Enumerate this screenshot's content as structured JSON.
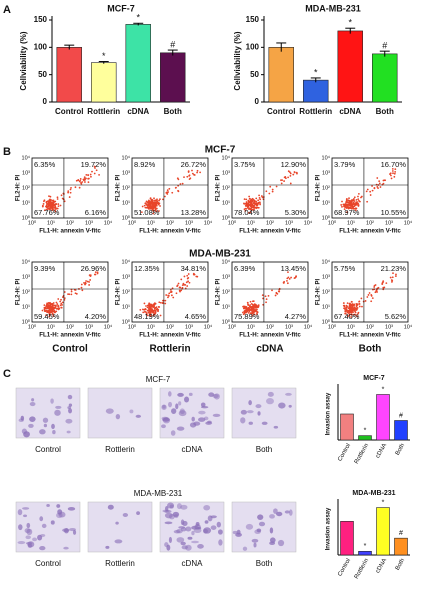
{
  "panels": [
    "A",
    "B",
    "C"
  ],
  "chart_data": [
    {
      "type": "bar",
      "title": "MCF-7",
      "y_label": "Cellviability (%)",
      "categories": [
        "Control",
        "Rottlerin",
        "cDNA",
        "Both"
      ],
      "values": [
        100,
        72,
        142,
        90
      ],
      "errors": [
        4,
        2,
        2,
        5
      ],
      "colors": [
        "#f24a4a",
        "#ffff9c",
        "#3de3a6",
        "#5c0f4f"
      ],
      "annotations": [
        null,
        "*",
        "*",
        "#"
      ],
      "ylim": [
        0,
        150
      ],
      "yticks": [
        0,
        50,
        100,
        150
      ]
    },
    {
      "type": "bar",
      "title": "MDA-MB-231",
      "y_label": "Cellviability (%)",
      "categories": [
        "Control",
        "Rottlerin",
        "cDNA",
        "Both"
      ],
      "values": [
        100,
        40,
        130,
        88
      ],
      "errors": [
        8,
        4,
        5,
        5
      ],
      "colors": [
        "#f5a445",
        "#2f62e0",
        "#ff1414",
        "#22e022"
      ],
      "annotations": [
        null,
        "*",
        "*",
        "#"
      ],
      "ylim": [
        0,
        150
      ],
      "yticks": [
        0,
        50,
        100,
        150
      ]
    },
    {
      "type": "bar",
      "title": "MCF-7",
      "y_label": "Invasion assay",
      "categories": [
        "Control",
        "Rottlerin",
        "cDNA",
        "Both"
      ],
      "values": [
        60,
        10,
        105,
        45
      ],
      "colors": [
        "#f28080",
        "#1fbf1f",
        "#ff45ff",
        "#2040ff"
      ],
      "annotations": [
        null,
        "*",
        "*",
        "#"
      ],
      "ylim": [
        0,
        120
      ]
    },
    {
      "type": "bar",
      "title": "MDA-MB-231",
      "y_label": "Invasion assay",
      "categories": [
        "Control",
        "Rottlerin",
        "cDNA",
        "Both"
      ],
      "values": [
        110,
        12,
        155,
        55
      ],
      "colors": [
        "#ff2080",
        "#4040ff",
        "#ffff22",
        "#ff9020"
      ],
      "annotations": [
        null,
        "*",
        "*",
        "#"
      ],
      "ylim": [
        0,
        170
      ]
    }
  ],
  "flow_cytometry": {
    "y_axis_label": "FL2-H: PI",
    "x_axis_label": "FL1-H: annexin V-fitc",
    "tick_labels": [
      "10⁰",
      "10¹",
      "10²",
      "10³",
      "10⁴"
    ],
    "conditions": [
      "Control",
      "Rottlerin",
      "cDNA",
      "Both"
    ],
    "rows": [
      {
        "title": "MCF-7",
        "quadrants": [
          [
            "6.35%",
            "19.72%",
            "67.76%",
            "6.16%"
          ],
          [
            "8.92%",
            "26.72%",
            "51.08%",
            "13.28%"
          ],
          [
            "3.75%",
            "12.90%",
            "78.04%",
            "5.30%"
          ],
          [
            "3.79%",
            "16.70%",
            "68.97%",
            "10.55%"
          ]
        ]
      },
      {
        "title": "MDA-MB-231",
        "quadrants": [
          [
            "9.39%",
            "26.96%",
            "59.45%",
            "4.20%"
          ],
          [
            "12.35%",
            "34.81%",
            "48.19%",
            "4.65%"
          ],
          [
            "6.39%",
            "13.45%",
            "75.89%",
            "4.27%"
          ],
          [
            "5.75%",
            "21.23%",
            "67.40%",
            "5.62%"
          ]
        ]
      }
    ]
  },
  "invasion_images": {
    "rows": [
      {
        "title": "MCF-7",
        "labels": [
          "Control",
          "Rottlerin",
          "cDNA",
          "Both"
        ]
      },
      {
        "title": "MDA-MB-231",
        "labels": [
          "Control",
          "Rottlerin",
          "cDNA",
          "Both"
        ]
      }
    ]
  }
}
